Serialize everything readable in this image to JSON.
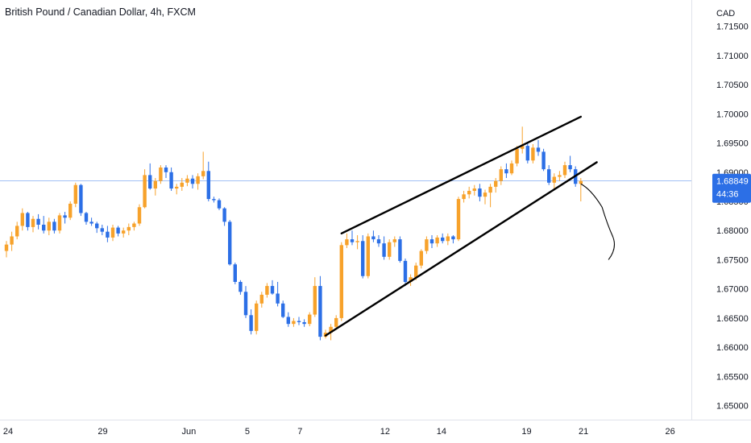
{
  "header": {
    "title": "British Pound / Canadian Dollar, 4h, FXCM"
  },
  "colors": {
    "up": "#f7a22b",
    "down": "#2c6fe6",
    "price_line": "#2c6fe6",
    "trend": "#000000",
    "axis_text": "#131722",
    "badge_bg": "#2c6fe6"
  },
  "chart_data": {
    "type": "candlestick",
    "title": "British Pound / Canadian Dollar, 4h, FXCM",
    "currency": "CAD",
    "ylim": [
      1.6476,
      1.7195
    ],
    "y_ticks": [
      "1.71500",
      "1.71000",
      "1.70500",
      "1.70000",
      "1.69500",
      "1.69000",
      "1.68500",
      "1.68000",
      "1.67500",
      "1.67000",
      "1.66500",
      "1.66000",
      "1.65500",
      "1.65000"
    ],
    "x_ticks": [
      {
        "label": "24",
        "index": 0.3
      },
      {
        "label": "29",
        "index": 18.1
      },
      {
        "label": "Jun",
        "index": 34.3
      },
      {
        "label": "5",
        "index": 45.3
      },
      {
        "label": "7",
        "index": 55.2
      },
      {
        "label": "12",
        "index": 71.2
      },
      {
        "label": "14",
        "index": 81.8
      },
      {
        "label": "19",
        "index": 97.8
      },
      {
        "label": "21",
        "index": 108.5
      },
      {
        "label": "26",
        "index": 124.8
      }
    ],
    "last_price": {
      "value": "1.68849",
      "countdown": "44:36",
      "y": 1.68849
    },
    "candles": [
      [
        1.6765,
        1.6782,
        1.6754,
        1.6776
      ],
      [
        1.6776,
        1.6798,
        1.6765,
        1.679
      ],
      [
        1.679,
        1.6815,
        1.6785,
        1.6808
      ],
      [
        1.6808,
        1.6838,
        1.68,
        1.683
      ],
      [
        1.683,
        1.6832,
        1.68,
        1.6806
      ],
      [
        1.6806,
        1.6825,
        1.6797,
        1.682
      ],
      [
        1.682,
        1.6828,
        1.6802,
        1.681
      ],
      [
        1.681,
        1.6825,
        1.6795,
        1.68
      ],
      [
        1.68,
        1.6822,
        1.6792,
        1.6815
      ],
      [
        1.6815,
        1.682,
        1.6795,
        1.68
      ],
      [
        1.68,
        1.683,
        1.6795,
        1.6826
      ],
      [
        1.6826,
        1.6832,
        1.6812,
        1.6822
      ],
      [
        1.6822,
        1.685,
        1.6818,
        1.6846
      ],
      [
        1.6846,
        1.6882,
        1.684,
        1.6878
      ],
      [
        1.6878,
        1.688,
        1.6825,
        1.683
      ],
      [
        1.683,
        1.6832,
        1.681,
        1.6815
      ],
      [
        1.6815,
        1.6822,
        1.6808,
        1.6812
      ],
      [
        1.6812,
        1.6815,
        1.6796,
        1.6804
      ],
      [
        1.6804,
        1.681,
        1.6792,
        1.6798
      ],
      [
        1.6798,
        1.6808,
        1.678,
        1.6788
      ],
      [
        1.6788,
        1.681,
        1.6782,
        1.6805
      ],
      [
        1.6805,
        1.6808,
        1.679,
        1.6795
      ],
      [
        1.6795,
        1.6805,
        1.6788,
        1.68
      ],
      [
        1.68,
        1.6812,
        1.6792,
        1.6806
      ],
      [
        1.6806,
        1.6815,
        1.68,
        1.6812
      ],
      [
        1.6812,
        1.6845,
        1.6808,
        1.684
      ],
      [
        1.684,
        1.6905,
        1.6838,
        1.6895
      ],
      [
        1.6895,
        1.6915,
        1.687,
        1.6872
      ],
      [
        1.6872,
        1.689,
        1.686,
        1.6885
      ],
      [
        1.6885,
        1.6912,
        1.688,
        1.6908
      ],
      [
        1.6908,
        1.6912,
        1.689,
        1.69
      ],
      [
        1.69,
        1.6908,
        1.6868,
        1.6872
      ],
      [
        1.6872,
        1.688,
        1.6862,
        1.6875
      ],
      [
        1.6875,
        1.689,
        1.6868,
        1.6882
      ],
      [
        1.6882,
        1.6895,
        1.6876,
        1.6889
      ],
      [
        1.6889,
        1.6895,
        1.6872,
        1.688
      ],
      [
        1.688,
        1.6898,
        1.687,
        1.6893
      ],
      [
        1.6893,
        1.6935,
        1.6888,
        1.6902
      ],
      [
        1.6902,
        1.6918,
        1.685,
        1.6854
      ],
      [
        1.6854,
        1.6858,
        1.6848,
        1.6852
      ],
      [
        1.6852,
        1.6855,
        1.6835,
        1.6838
      ],
      [
        1.6838,
        1.684,
        1.6808,
        1.6815
      ],
      [
        1.6815,
        1.6818,
        1.674,
        1.6742
      ],
      [
        1.6742,
        1.6745,
        1.6708,
        1.6712
      ],
      [
        1.6712,
        1.6715,
        1.669,
        1.6695
      ],
      [
        1.6695,
        1.6705,
        1.665,
        1.6655
      ],
      [
        1.6655,
        1.6665,
        1.6622,
        1.6628
      ],
      [
        1.6628,
        1.668,
        1.6622,
        1.6675
      ],
      [
        1.6675,
        1.6695,
        1.6668,
        1.669
      ],
      [
        1.669,
        1.671,
        1.6685,
        1.6705
      ],
      [
        1.6705,
        1.6715,
        1.669,
        1.6692
      ],
      [
        1.6692,
        1.6712,
        1.667,
        1.6675
      ],
      [
        1.6675,
        1.668,
        1.665,
        1.6652
      ],
      [
        1.6652,
        1.666,
        1.6635,
        1.664
      ],
      [
        1.664,
        1.665,
        1.6635,
        1.6645
      ],
      [
        1.6645,
        1.6652,
        1.6638,
        1.6643
      ],
      [
        1.6643,
        1.6648,
        1.6635,
        1.664
      ],
      [
        1.664,
        1.666,
        1.6636,
        1.6656
      ],
      [
        1.6656,
        1.672,
        1.6652,
        1.6705
      ],
      [
        1.6705,
        1.6722,
        1.6612,
        1.6618
      ],
      [
        1.6618,
        1.663,
        1.6615,
        1.6625
      ],
      [
        1.6625,
        1.664,
        1.6612,
        1.6635
      ],
      [
        1.6635,
        1.6655,
        1.663,
        1.665
      ],
      [
        1.665,
        1.678,
        1.6645,
        1.6775
      ],
      [
        1.6775,
        1.6795,
        1.677,
        1.6785
      ],
      [
        1.6785,
        1.68,
        1.6775,
        1.678
      ],
      [
        1.678,
        1.6792,
        1.6768,
        1.6782
      ],
      [
        1.6782,
        1.6792,
        1.6718,
        1.6722
      ],
      [
        1.6722,
        1.6795,
        1.6718,
        1.679
      ],
      [
        1.679,
        1.68,
        1.678,
        1.6785
      ],
      [
        1.6785,
        1.6792,
        1.6772,
        1.6778
      ],
      [
        1.6778,
        1.679,
        1.675,
        1.6755
      ],
      [
        1.6755,
        1.6785,
        1.675,
        1.678
      ],
      [
        1.678,
        1.679,
        1.6772,
        1.6785
      ],
      [
        1.6785,
        1.679,
        1.6745,
        1.6748
      ],
      [
        1.6748,
        1.6752,
        1.6705,
        1.6712
      ],
      [
        1.6712,
        1.6725,
        1.6705,
        1.672
      ],
      [
        1.672,
        1.6745,
        1.6715,
        1.674
      ],
      [
        1.674,
        1.6768,
        1.6735,
        1.6765
      ],
      [
        1.6765,
        1.679,
        1.676,
        1.6785
      ],
      [
        1.6785,
        1.6792,
        1.677,
        1.6778
      ],
      [
        1.6778,
        1.6792,
        1.6772,
        1.6788
      ],
      [
        1.6788,
        1.6795,
        1.6778,
        1.6782
      ],
      [
        1.6782,
        1.6795,
        1.6775,
        1.679
      ],
      [
        1.679,
        1.6792,
        1.6778,
        1.6785
      ],
      [
        1.6785,
        1.6858,
        1.6782,
        1.6854
      ],
      [
        1.6854,
        1.6868,
        1.6848,
        1.6862
      ],
      [
        1.6862,
        1.6875,
        1.6855,
        1.6868
      ],
      [
        1.6868,
        1.6878,
        1.686,
        1.6872
      ],
      [
        1.6872,
        1.688,
        1.685,
        1.6858
      ],
      [
        1.6858,
        1.687,
        1.6845,
        1.6865
      ],
      [
        1.6865,
        1.688,
        1.684,
        1.6875
      ],
      [
        1.6875,
        1.689,
        1.6865,
        1.6885
      ],
      [
        1.6885,
        1.691,
        1.6878,
        1.6905
      ],
      [
        1.6905,
        1.6915,
        1.689,
        1.6898
      ],
      [
        1.6898,
        1.692,
        1.6895,
        1.6915
      ],
      [
        1.6915,
        1.6945,
        1.691,
        1.694
      ],
      [
        1.694,
        1.6978,
        1.6932,
        1.6945
      ],
      [
        1.6945,
        1.695,
        1.6915,
        1.692
      ],
      [
        1.692,
        1.6948,
        1.6915,
        1.6942
      ],
      [
        1.6942,
        1.6955,
        1.6928,
        1.6935
      ],
      [
        1.6935,
        1.694,
        1.6902,
        1.6905
      ],
      [
        1.6905,
        1.6912,
        1.6878,
        1.6882
      ],
      [
        1.6882,
        1.6898,
        1.687,
        1.6892
      ],
      [
        1.6892,
        1.6902,
        1.6885,
        1.6895
      ],
      [
        1.6895,
        1.6918,
        1.689,
        1.6912
      ],
      [
        1.6912,
        1.6928,
        1.69,
        1.6905
      ],
      [
        1.6905,
        1.691,
        1.6875,
        1.688
      ],
      [
        1.688,
        1.689,
        1.685,
        1.6885
      ]
    ],
    "trendlines": [
      {
        "from": [
          63,
          1.6795
        ],
        "to": [
          108,
          1.6995
        ]
      },
      {
        "from": [
          60,
          1.662
        ],
        "to": [
          111,
          1.6917
        ]
      }
    ],
    "projection": [
      [
        108,
        1.688
      ],
      [
        110,
        1.687
      ],
      [
        112,
        1.684
      ],
      [
        113,
        1.681
      ],
      [
        114,
        1.679
      ],
      [
        113.2,
        1.675
      ]
    ]
  }
}
